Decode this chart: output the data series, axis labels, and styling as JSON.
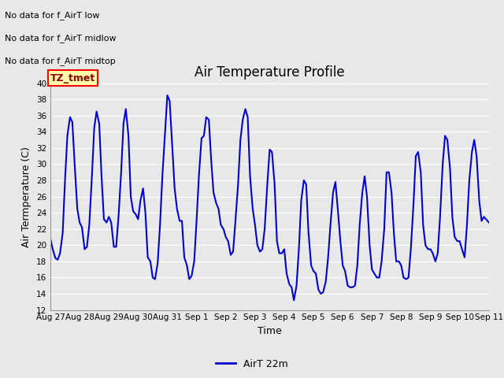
{
  "title": "Air Temperature Profile",
  "xlabel": "Time",
  "ylabel": "Air Termperature (C)",
  "line_color": "#0000CC",
  "line_width": 1.5,
  "ylim": [
    12,
    40
  ],
  "yticks": [
    12,
    14,
    16,
    18,
    20,
    22,
    24,
    26,
    28,
    30,
    32,
    34,
    36,
    38,
    40
  ],
  "background_color": "#E8E8E8",
  "plot_bg_color": "#E8E8E8",
  "grid_color": "#FFFFFF",
  "legend_label": "AirT 22m",
  "legend_color": "#0000CC",
  "no_data_texts": [
    "No data for f_AirT low",
    "No data for f_AirT midlow",
    "No data for f_AirT midtop"
  ],
  "tz_label": "TZ_tmet",
  "x_tick_labels": [
    "Aug 27",
    "Aug 28",
    "Aug 29",
    "Aug 30",
    "Aug 31",
    "Sep 1",
    "Sep 2",
    "Sep 3",
    "Sep 4",
    "Sep 5",
    "Sep 6",
    "Sep 7",
    "Sep 8",
    "Sep 9",
    "Sep 10",
    "Sep 11"
  ],
  "temp_data": [
    [
      0.0,
      20.8
    ],
    [
      0.08,
      19.5
    ],
    [
      0.17,
      18.4
    ],
    [
      0.25,
      18.2
    ],
    [
      0.33,
      19.0
    ],
    [
      0.42,
      21.5
    ],
    [
      0.5,
      28.0
    ],
    [
      0.58,
      33.5
    ],
    [
      0.67,
      35.8
    ],
    [
      0.75,
      35.2
    ],
    [
      0.83,
      30.0
    ],
    [
      0.92,
      24.5
    ],
    [
      1.0,
      22.8
    ],
    [
      1.08,
      22.2
    ],
    [
      1.17,
      19.5
    ],
    [
      1.25,
      19.8
    ],
    [
      1.33,
      22.5
    ],
    [
      1.42,
      28.5
    ],
    [
      1.5,
      34.5
    ],
    [
      1.58,
      36.5
    ],
    [
      1.67,
      35.0
    ],
    [
      1.75,
      28.5
    ],
    [
      1.83,
      23.2
    ],
    [
      1.92,
      22.8
    ],
    [
      2.0,
      23.5
    ],
    [
      2.08,
      22.8
    ],
    [
      2.17,
      19.8
    ],
    [
      2.25,
      19.8
    ],
    [
      2.33,
      23.5
    ],
    [
      2.42,
      29.0
    ],
    [
      2.5,
      35.0
    ],
    [
      2.58,
      36.8
    ],
    [
      2.67,
      33.5
    ],
    [
      2.75,
      26.0
    ],
    [
      2.83,
      24.2
    ],
    [
      2.92,
      23.8
    ],
    [
      3.0,
      23.2
    ],
    [
      3.08,
      25.5
    ],
    [
      3.17,
      27.0
    ],
    [
      3.25,
      24.0
    ],
    [
      3.33,
      18.5
    ],
    [
      3.42,
      18.0
    ],
    [
      3.5,
      16.0
    ],
    [
      3.58,
      15.8
    ],
    [
      3.67,
      17.8
    ],
    [
      3.75,
      22.5
    ],
    [
      3.83,
      28.5
    ],
    [
      3.92,
      33.8
    ],
    [
      4.0,
      38.5
    ],
    [
      4.08,
      37.8
    ],
    [
      4.17,
      32.0
    ],
    [
      4.25,
      27.0
    ],
    [
      4.33,
      24.5
    ],
    [
      4.42,
      23.0
    ],
    [
      4.5,
      23.0
    ],
    [
      4.58,
      18.5
    ],
    [
      4.67,
      17.5
    ],
    [
      4.75,
      15.8
    ],
    [
      4.83,
      16.2
    ],
    [
      4.92,
      18.0
    ],
    [
      5.0,
      23.0
    ],
    [
      5.08,
      28.5
    ],
    [
      5.17,
      33.2
    ],
    [
      5.25,
      33.5
    ],
    [
      5.33,
      35.8
    ],
    [
      5.42,
      35.5
    ],
    [
      5.5,
      30.5
    ],
    [
      5.58,
      26.5
    ],
    [
      5.67,
      25.2
    ],
    [
      5.75,
      24.5
    ],
    [
      5.83,
      22.5
    ],
    [
      5.92,
      22.0
    ],
    [
      6.0,
      21.0
    ],
    [
      6.08,
      20.5
    ],
    [
      6.17,
      18.8
    ],
    [
      6.25,
      19.2
    ],
    [
      6.33,
      23.0
    ],
    [
      6.42,
      27.5
    ],
    [
      6.5,
      33.0
    ],
    [
      6.58,
      35.5
    ],
    [
      6.67,
      36.8
    ],
    [
      6.75,
      35.8
    ],
    [
      6.83,
      28.5
    ],
    [
      6.92,
      24.5
    ],
    [
      7.0,
      22.5
    ],
    [
      7.08,
      20.0
    ],
    [
      7.17,
      19.2
    ],
    [
      7.25,
      19.5
    ],
    [
      7.33,
      22.0
    ],
    [
      7.42,
      27.5
    ],
    [
      7.5,
      31.8
    ],
    [
      7.58,
      31.5
    ],
    [
      7.67,
      27.5
    ],
    [
      7.75,
      20.5
    ],
    [
      7.83,
      19.0
    ],
    [
      7.92,
      19.0
    ],
    [
      8.0,
      19.5
    ],
    [
      8.08,
      16.5
    ],
    [
      8.17,
      15.2
    ],
    [
      8.25,
      14.8
    ],
    [
      8.33,
      13.2
    ],
    [
      8.42,
      15.0
    ],
    [
      8.5,
      19.5
    ],
    [
      8.58,
      25.5
    ],
    [
      8.67,
      28.0
    ],
    [
      8.75,
      27.5
    ],
    [
      8.83,
      21.5
    ],
    [
      8.92,
      17.5
    ],
    [
      9.0,
      16.8
    ],
    [
      9.08,
      16.5
    ],
    [
      9.17,
      14.5
    ],
    [
      9.25,
      14.0
    ],
    [
      9.33,
      14.2
    ],
    [
      9.42,
      15.5
    ],
    [
      9.5,
      18.5
    ],
    [
      9.58,
      22.5
    ],
    [
      9.67,
      26.5
    ],
    [
      9.75,
      27.8
    ],
    [
      9.83,
      24.5
    ],
    [
      9.92,
      20.5
    ],
    [
      10.0,
      17.5
    ],
    [
      10.08,
      16.8
    ],
    [
      10.17,
      15.0
    ],
    [
      10.25,
      14.8
    ],
    [
      10.33,
      14.8
    ],
    [
      10.42,
      15.0
    ],
    [
      10.5,
      17.5
    ],
    [
      10.58,
      22.5
    ],
    [
      10.67,
      26.5
    ],
    [
      10.75,
      28.5
    ],
    [
      10.83,
      26.0
    ],
    [
      10.92,
      20.0
    ],
    [
      11.0,
      17.0
    ],
    [
      11.08,
      16.5
    ],
    [
      11.17,
      16.0
    ],
    [
      11.25,
      16.0
    ],
    [
      11.33,
      18.0
    ],
    [
      11.42,
      22.0
    ],
    [
      11.5,
      29.0
    ],
    [
      11.58,
      29.0
    ],
    [
      11.67,
      26.5
    ],
    [
      11.75,
      21.5
    ],
    [
      11.83,
      18.0
    ],
    [
      11.92,
      18.0
    ],
    [
      12.0,
      17.5
    ],
    [
      12.08,
      16.0
    ],
    [
      12.17,
      15.8
    ],
    [
      12.25,
      16.0
    ],
    [
      12.33,
      19.5
    ],
    [
      12.42,
      25.0
    ],
    [
      12.5,
      31.0
    ],
    [
      12.58,
      31.5
    ],
    [
      12.67,
      29.0
    ],
    [
      12.75,
      22.5
    ],
    [
      12.83,
      20.0
    ],
    [
      12.92,
      19.5
    ],
    [
      13.0,
      19.5
    ],
    [
      13.08,
      19.0
    ],
    [
      13.17,
      18.0
    ],
    [
      13.25,
      19.0
    ],
    [
      13.33,
      23.5
    ],
    [
      13.42,
      30.0
    ],
    [
      13.5,
      33.5
    ],
    [
      13.58,
      33.0
    ],
    [
      13.67,
      29.5
    ],
    [
      13.75,
      23.5
    ],
    [
      13.83,
      21.0
    ],
    [
      13.92,
      20.5
    ],
    [
      14.0,
      20.5
    ],
    [
      14.08,
      19.5
    ],
    [
      14.17,
      18.5
    ],
    [
      14.25,
      22.5
    ],
    [
      14.33,
      28.0
    ],
    [
      14.42,
      31.5
    ],
    [
      14.5,
      33.0
    ],
    [
      14.58,
      31.0
    ],
    [
      14.67,
      25.5
    ],
    [
      14.75,
      23.0
    ],
    [
      14.83,
      23.5
    ],
    [
      15.0,
      22.8
    ]
  ]
}
